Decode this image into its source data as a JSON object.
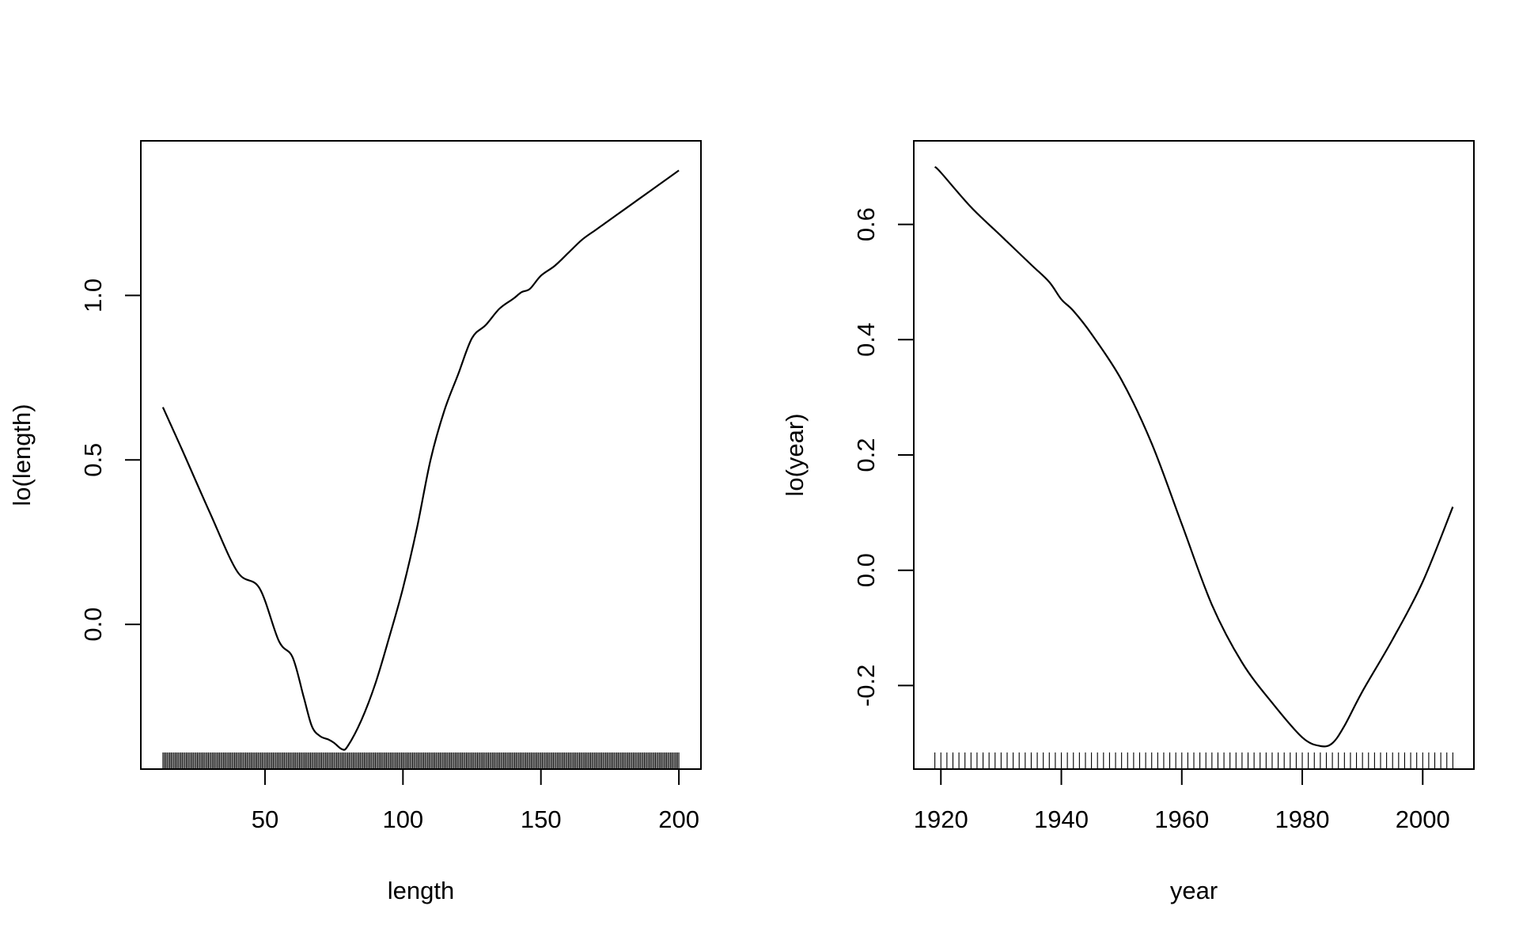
{
  "colors": {
    "background": "#ffffff",
    "ink": "#000000"
  },
  "chart_data": [
    {
      "type": "line",
      "title": "",
      "xlabel": "length",
      "ylabel": "lo(length)",
      "xlim": [
        5,
        208
      ],
      "ylim": [
        -0.44,
        1.47
      ],
      "xticks": [
        50,
        100,
        150,
        200
      ],
      "xtick_labels": [
        "50",
        "100",
        "150",
        "200"
      ],
      "yticks": [
        0.0,
        0.5,
        1.0
      ],
      "ytick_labels": [
        "0.0",
        "0.5",
        "1.0"
      ],
      "grid": false,
      "legend": "none",
      "series": [
        {
          "x": [
            13,
            20,
            30,
            40,
            48,
            55,
            60,
            64,
            67,
            70,
            73,
            75,
            78,
            80,
            85,
            90,
            95,
            100,
            105,
            110,
            115,
            120,
            125,
            130,
            135,
            140,
            143,
            146,
            150,
            155,
            160,
            165,
            170,
            175,
            180,
            185,
            190,
            195,
            200
          ],
          "y": [
            0.66,
            0.53,
            0.34,
            0.16,
            0.11,
            -0.05,
            -0.1,
            -0.22,
            -0.31,
            -0.34,
            -0.35,
            -0.36,
            -0.38,
            -0.37,
            -0.29,
            -0.18,
            -0.04,
            0.11,
            0.29,
            0.5,
            0.65,
            0.76,
            0.87,
            0.91,
            0.96,
            0.99,
            1.01,
            1.02,
            1.06,
            1.09,
            1.13,
            1.17,
            1.2,
            1.23,
            1.26,
            1.29,
            1.32,
            1.35,
            1.38
          ]
        }
      ],
      "rug": {
        "from": 13,
        "to": 200,
        "step": 0.5
      }
    },
    {
      "type": "line",
      "title": "",
      "xlabel": "year",
      "ylabel": "lo(year)",
      "xlim": [
        1915.5,
        2008.5
      ],
      "ylim": [
        -0.345,
        0.745
      ],
      "xticks": [
        1920,
        1940,
        1960,
        1980,
        2000
      ],
      "xtick_labels": [
        "1920",
        "1940",
        "1960",
        "1980",
        "2000"
      ],
      "yticks": [
        -0.2,
        0.0,
        0.2,
        0.4,
        0.6
      ],
      "ytick_labels": [
        "-0.2",
        "0.0",
        "0.2",
        "0.4",
        "0.6"
      ],
      "grid": false,
      "legend": "none",
      "series": [
        {
          "x": [
            1919,
            1920,
            1925,
            1930,
            1935,
            1938,
            1940,
            1942,
            1945,
            1950,
            1955,
            1960,
            1965,
            1970,
            1975,
            1980,
            1983,
            1985,
            1987,
            1990,
            1995,
            2000,
            2005
          ],
          "y": [
            0.7,
            0.69,
            0.63,
            0.58,
            0.53,
            0.5,
            0.47,
            0.45,
            0.41,
            0.33,
            0.22,
            0.08,
            -0.06,
            -0.16,
            -0.23,
            -0.29,
            -0.305,
            -0.3,
            -0.27,
            -0.21,
            -0.12,
            -0.02,
            0.11
          ]
        }
      ],
      "rug": {
        "from": 1919,
        "to": 2005,
        "step": 1
      }
    }
  ]
}
